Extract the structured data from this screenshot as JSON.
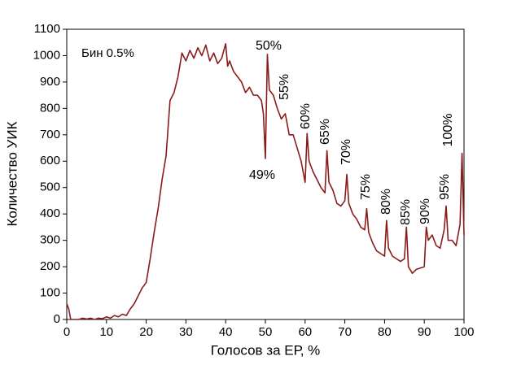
{
  "chart_data": {
    "type": "line",
    "xlabel": "Голосов за ЕР, %",
    "ylabel": "Количество УИК",
    "annotations": [
      "Бин 0.5%",
      "50%",
      "49%",
      "55%",
      "60%",
      "65%",
      "70%",
      "75%",
      "80%",
      "85%",
      "90%",
      "95%",
      "100%"
    ],
    "x": [
      0,
      0.5,
      1,
      2,
      3,
      4,
      5,
      6,
      7,
      8,
      9,
      10,
      11,
      12,
      13,
      14,
      15,
      16,
      17,
      18,
      19,
      20,
      21,
      22,
      23,
      24,
      25,
      26,
      27,
      28,
      29,
      30,
      31,
      32,
      33,
      34,
      35,
      36,
      37,
      38,
      39,
      40,
      40.5,
      41,
      42,
      43,
      44,
      45,
      46,
      47,
      48,
      49,
      49.5,
      50,
      50.5,
      51,
      52,
      53,
      54,
      55,
      56,
      57,
      58,
      59,
      60,
      60.5,
      61,
      62,
      63,
      64,
      65,
      65.5,
      66,
      67,
      68,
      69,
      70,
      70.5,
      71,
      72,
      73,
      74,
      75,
      75.5,
      76,
      77,
      78,
      79,
      80,
      80.5,
      81,
      82,
      83,
      84,
      85,
      85.5,
      86,
      87,
      88,
      89,
      90,
      90.5,
      91,
      92,
      93,
      94,
      95,
      95.5,
      96,
      97,
      98,
      99,
      99.5,
      100
    ],
    "series": [
      {
        "color": "#8b1a1a",
        "values": [
          60,
          40,
          0,
          0,
          0,
          5,
          2,
          5,
          0,
          5,
          3,
          10,
          5,
          15,
          10,
          20,
          15,
          40,
          60,
          90,
          120,
          140,
          230,
          330,
          420,
          530,
          620,
          830,
          860,
          920,
          1010,
          980,
          1020,
          990,
          1030,
          1000,
          1040,
          980,
          1010,
          970,
          990,
          1045,
          960,
          980,
          940,
          920,
          900,
          860,
          880,
          850,
          850,
          830,
          780,
          610,
          1005,
          870,
          850,
          800,
          760,
          780,
          700,
          700,
          650,
          600,
          520,
          705,
          600,
          560,
          530,
          500,
          480,
          640,
          520,
          490,
          440,
          430,
          450,
          550,
          440,
          400,
          380,
          350,
          340,
          420,
          330,
          290,
          260,
          250,
          240,
          375,
          270,
          240,
          230,
          220,
          230,
          350,
          200,
          175,
          190,
          195,
          200,
          350,
          300,
          320,
          280,
          270,
          340,
          430,
          300,
          300,
          280,
          360,
          630,
          320
        ]
      }
    ],
    "xlim": [
      0,
      100
    ],
    "xticks": [
      0,
      10,
      20,
      30,
      40,
      50,
      60,
      70,
      80,
      90,
      100
    ],
    "ylim": [
      0,
      1100
    ],
    "yticks": [
      0,
      100,
      200,
      300,
      400,
      500,
      600,
      700,
      800,
      900,
      1000,
      1100
    ]
  }
}
